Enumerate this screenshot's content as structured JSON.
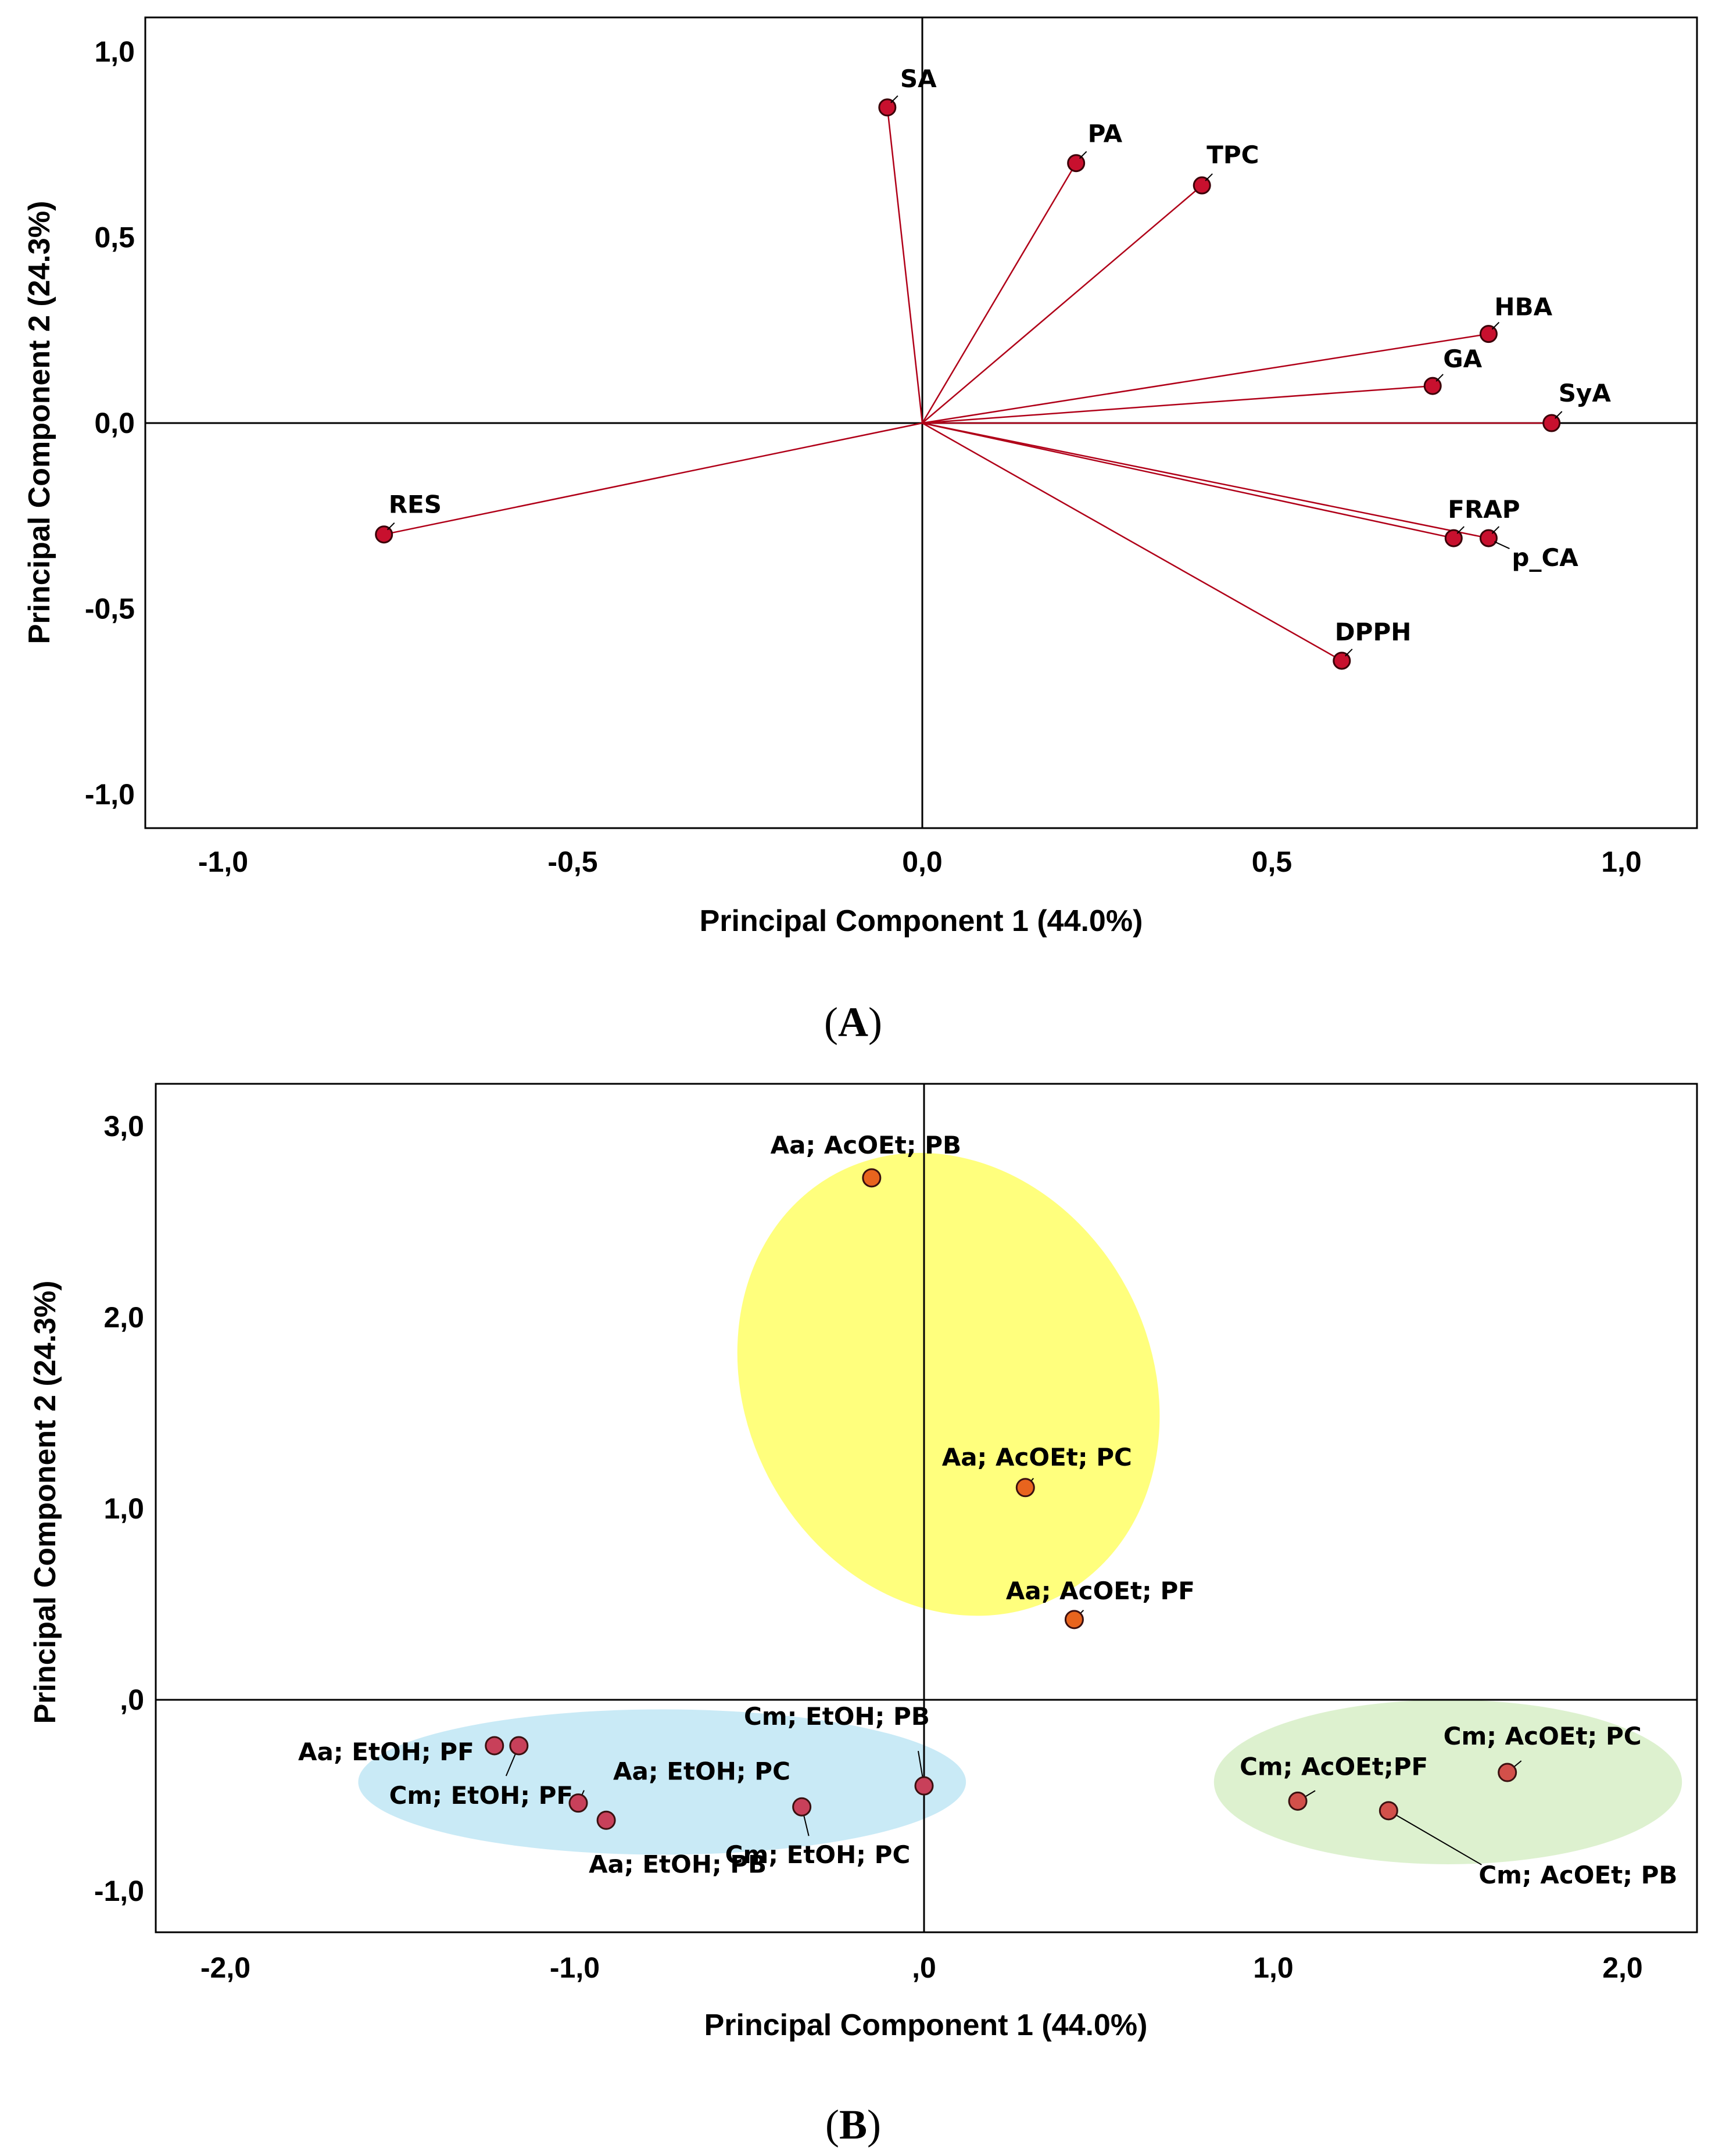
{
  "chart_data": [
    {
      "type": "scatter",
      "subtype": "loading-plot",
      "panel": "A",
      "panel_label": "A",
      "xlabel": "Principal Component 1 (44.0%)",
      "ylabel": "Principal Component 2 (24.3%)",
      "xlim": [
        -1.1,
        1.1
      ],
      "ylim": [
        -1.1,
        1.1
      ],
      "xticks": [
        -1.0,
        -0.5,
        0.0,
        0.5,
        1.0
      ],
      "xtick_labels": [
        "-1,0",
        "-0,5",
        "0,0",
        "0,5",
        "1,0"
      ],
      "yticks": [
        1.0,
        0.5,
        0.0,
        -0.5,
        -1.0
      ],
      "ytick_labels": [
        "1,0",
        "0,5",
        "0,0",
        "-0,5",
        "-1,0"
      ],
      "vectors_from_origin": true,
      "points": [
        {
          "label": "SA",
          "x": -0.05,
          "y": 0.85
        },
        {
          "label": "PA",
          "x": 0.22,
          "y": 0.7
        },
        {
          "label": "TPC",
          "x": 0.4,
          "y": 0.64
        },
        {
          "label": "HBA",
          "x": 0.81,
          "y": 0.24
        },
        {
          "label": "GA",
          "x": 0.73,
          "y": 0.1
        },
        {
          "label": "SyA",
          "x": 0.9,
          "y": 0.0
        },
        {
          "label": "FRAP",
          "x": 0.76,
          "y": -0.31
        },
        {
          "label": "p_CA",
          "x": 0.81,
          "y": -0.31
        },
        {
          "label": "DPPH",
          "x": 0.6,
          "y": -0.64
        },
        {
          "label": "RES",
          "x": -0.77,
          "y": -0.3
        }
      ],
      "colors": {
        "vector": "#b00018",
        "point": "#c8102e"
      }
    },
    {
      "type": "scatter",
      "subtype": "score-plot",
      "panel": "B",
      "panel_label": "B",
      "xlabel": "Principal Component 1 (44.0%)",
      "ylabel": "Principal Component 2 (24.3%)",
      "xlim": [
        -2.2,
        2.2
      ],
      "ylim": [
        -1.2,
        3.2
      ],
      "xticks": [
        -2.0,
        -1.0,
        0.0,
        1.0,
        2.0
      ],
      "xtick_labels": [
        "-2,0",
        "-1,0",
        ",0",
        "1,0",
        "2,0"
      ],
      "yticks": [
        3.0,
        2.0,
        1.0,
        0.0,
        -1.0
      ],
      "ytick_labels": [
        "3,0",
        "2,0",
        "1,0",
        ",0",
        "-1,0"
      ],
      "points": [
        {
          "label": "Aa; AcOEt; PB",
          "x": -0.15,
          "y": 2.73,
          "group": "AcOEt-Aa"
        },
        {
          "label": "Aa; AcOEt; PC",
          "x": 0.29,
          "y": 1.11,
          "group": "AcOEt-Aa"
        },
        {
          "label": "Aa; AcOEt; PF",
          "x": 0.43,
          "y": 0.42,
          "group": "AcOEt-Aa"
        },
        {
          "label": "Aa; EtOH; PF",
          "x": -1.23,
          "y": -0.24,
          "group": "EtOH"
        },
        {
          "label": "Cm; EtOH; PF",
          "x": -1.16,
          "y": -0.24,
          "group": "EtOH"
        },
        {
          "label": "Aa; EtOH; PC",
          "x": -0.99,
          "y": -0.54,
          "group": "EtOH"
        },
        {
          "label": "Aa; EtOH; PB",
          "x": -0.91,
          "y": -0.63,
          "group": "EtOH"
        },
        {
          "label": "Cm; EtOH; PC",
          "x": -0.35,
          "y": -0.56,
          "group": "EtOH"
        },
        {
          "label": "Cm; EtOH; PB",
          "x": 0.0,
          "y": -0.45,
          "group": "EtOH"
        },
        {
          "label": "Cm; AcOEt; PC",
          "x": 1.67,
          "y": -0.38,
          "group": "AcOEt-Cm"
        },
        {
          "label": "Cm; AcOEt;PF",
          "x": 1.07,
          "y": -0.53,
          "group": "AcOEt-Cm"
        },
        {
          "label": "Cm; AcOEt; PB",
          "x": 1.33,
          "y": -0.58,
          "group": "AcOEt-Cm"
        }
      ],
      "groups": [
        {
          "name": "AcOEt-Aa",
          "fill": "#ffff66",
          "point": "#e8641e"
        },
        {
          "name": "EtOH",
          "fill": "#bfe6f5",
          "point": "#c8405a"
        },
        {
          "name": "AcOEt-Cm",
          "fill": "#d7efc7",
          "point": "#d2504a"
        }
      ]
    }
  ]
}
